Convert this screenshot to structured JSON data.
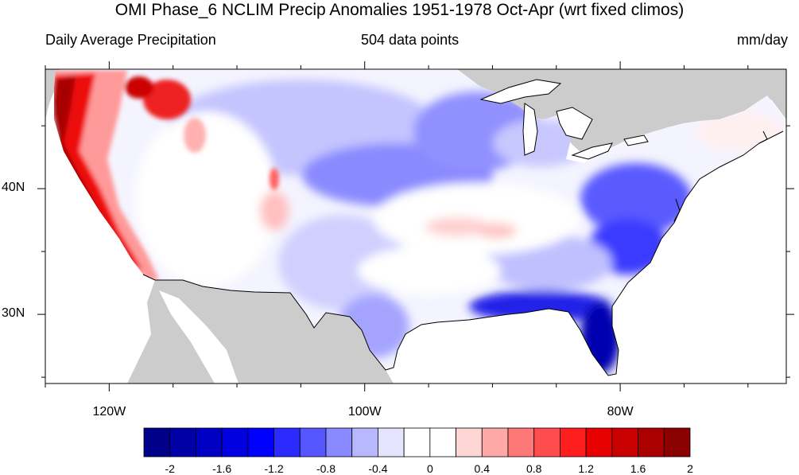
{
  "title": "OMI Phase_6 NCLIM Precip Anomalies 1951-1978 Oct-Apr (wrt fixed climos)",
  "subtitles": {
    "left": "Daily Average Precipitation",
    "center": "504 data points",
    "right": "mm/day"
  },
  "map": {
    "projection": "cylindrical-equidistant",
    "lon_range": [
      -125,
      -67
    ],
    "lat_range": [
      24.5,
      49.5
    ],
    "land_mask_color": "#cccccc",
    "ocean_color": "#ffffff",
    "lon_ticks": [
      {
        "value": -120,
        "label": "120W"
      },
      {
        "value": -100,
        "label": "100W"
      },
      {
        "value": -80,
        "label": "80W"
      }
    ],
    "lat_ticks": [
      {
        "value": 40,
        "label": "40N"
      },
      {
        "value": 30,
        "label": "30N"
      }
    ],
    "regions": [
      {
        "name": "pacific-northwest-coast",
        "anomaly": 2.0
      },
      {
        "name": "northern-california-coast",
        "anomaly": 1.6
      },
      {
        "name": "central-california",
        "anomaly": 1.2
      },
      {
        "name": "southern-california",
        "anomaly": 0.8
      },
      {
        "name": "northern-rockies",
        "anomaly": 1.4
      },
      {
        "name": "intermountain-west",
        "anomaly": 0.0
      },
      {
        "name": "colorado-rockies",
        "anomaly": 0.6
      },
      {
        "name": "northern-plains",
        "anomaly": -0.4
      },
      {
        "name": "central-plains",
        "anomaly": -0.8
      },
      {
        "name": "southern-plains",
        "anomaly": -0.4
      },
      {
        "name": "great-lakes",
        "anomaly": -0.8
      },
      {
        "name": "ohio-valley",
        "anomaly": 0.2
      },
      {
        "name": "southeast",
        "anomaly": -0.4
      },
      {
        "name": "mid-atlantic",
        "anomaly": -1.0
      },
      {
        "name": "carolinas-coast",
        "anomaly": -1.2
      },
      {
        "name": "gulf-coast",
        "anomaly": -1.6
      },
      {
        "name": "florida",
        "anomaly": -2.0
      },
      {
        "name": "new-england",
        "anomaly": 0.4
      }
    ]
  },
  "colorbar": {
    "colors": [
      "#00008b",
      "#0000a6",
      "#0000c4",
      "#0000e0",
      "#0000ff",
      "#2b2bff",
      "#5656ff",
      "#8989ff",
      "#b8b8ff",
      "#e4e4ff",
      "#ffffff",
      "#ffffff",
      "#ffd6d6",
      "#ffa8a8",
      "#ff7878",
      "#ff4c4c",
      "#ff1e1e",
      "#e60000",
      "#c80000",
      "#aa0000",
      "#8b0000"
    ],
    "labels": [
      {
        "after_box": 0,
        "text": "-2"
      },
      {
        "after_box": 2,
        "text": "-1.6"
      },
      {
        "after_box": 4,
        "text": "-1.2"
      },
      {
        "after_box": 6,
        "text": "-0.8"
      },
      {
        "after_box": 8,
        "text": "-0.4"
      },
      {
        "after_box": 10,
        "text": "0"
      },
      {
        "after_box": 12,
        "text": "0.4"
      },
      {
        "after_box": 14,
        "text": "0.8"
      },
      {
        "after_box": 16,
        "text": "1.2"
      },
      {
        "after_box": 18,
        "text": "1.6"
      },
      {
        "after_box": 20,
        "text": "2"
      }
    ]
  }
}
